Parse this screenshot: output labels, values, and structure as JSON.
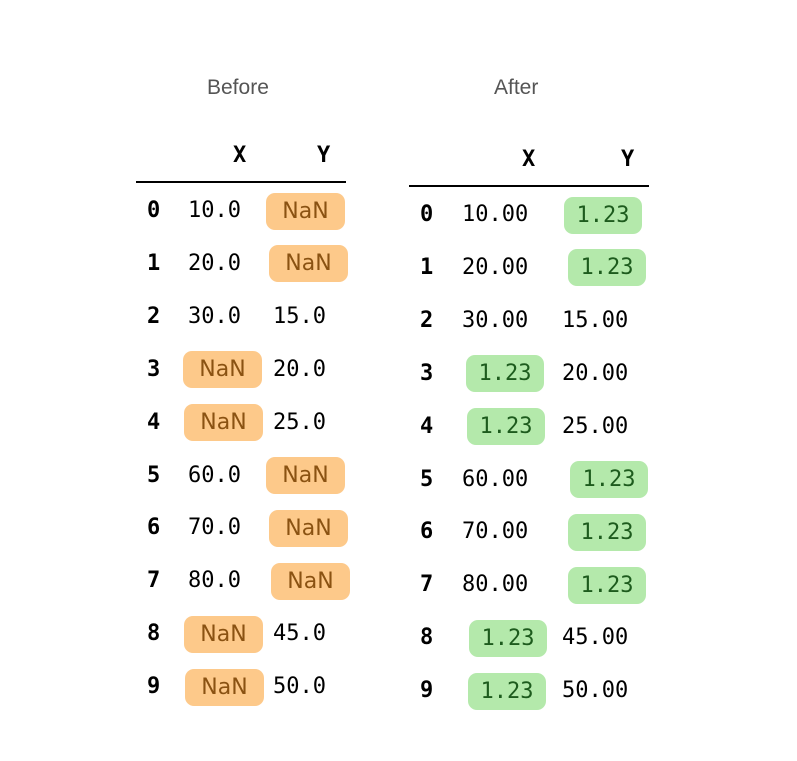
{
  "colors": {
    "nan_highlight": "#fdc98a",
    "fill_highlight": "#b4e9ab",
    "title_text": "#555555"
  },
  "before": {
    "title": "Before",
    "columns": [
      "X",
      "Y"
    ],
    "rows": [
      {
        "index": "0",
        "x": "10.0",
        "y": "NaN"
      },
      {
        "index": "1",
        "x": "20.0",
        "y": "NaN"
      },
      {
        "index": "2",
        "x": "30.0",
        "y": "15.0"
      },
      {
        "index": "3",
        "x": "NaN",
        "y": "20.0"
      },
      {
        "index": "4",
        "x": "NaN",
        "y": "25.0"
      },
      {
        "index": "5",
        "x": "60.0",
        "y": "NaN"
      },
      {
        "index": "6",
        "x": "70.0",
        "y": "NaN"
      },
      {
        "index": "7",
        "x": "80.0",
        "y": "NaN"
      },
      {
        "index": "8",
        "x": "NaN",
        "y": "45.0"
      },
      {
        "index": "9",
        "x": "NaN",
        "y": "50.0"
      }
    ]
  },
  "after": {
    "title": "After",
    "columns": [
      "X",
      "Y"
    ],
    "rows": [
      {
        "index": "0",
        "x": "10.00",
        "y": "1.23"
      },
      {
        "index": "1",
        "x": "20.00",
        "y": "1.23"
      },
      {
        "index": "2",
        "x": "30.00",
        "y": "15.00"
      },
      {
        "index": "3",
        "x": "1.23",
        "y": "20.00"
      },
      {
        "index": "4",
        "x": "1.23",
        "y": "25.00"
      },
      {
        "index": "5",
        "x": "60.00",
        "y": "1.23"
      },
      {
        "index": "6",
        "x": "70.00",
        "y": "1.23"
      },
      {
        "index": "7",
        "x": "80.00",
        "y": "1.23"
      },
      {
        "index": "8",
        "x": "1.23",
        "y": "45.00"
      },
      {
        "index": "9",
        "x": "1.23",
        "y": "50.00"
      }
    ]
  }
}
